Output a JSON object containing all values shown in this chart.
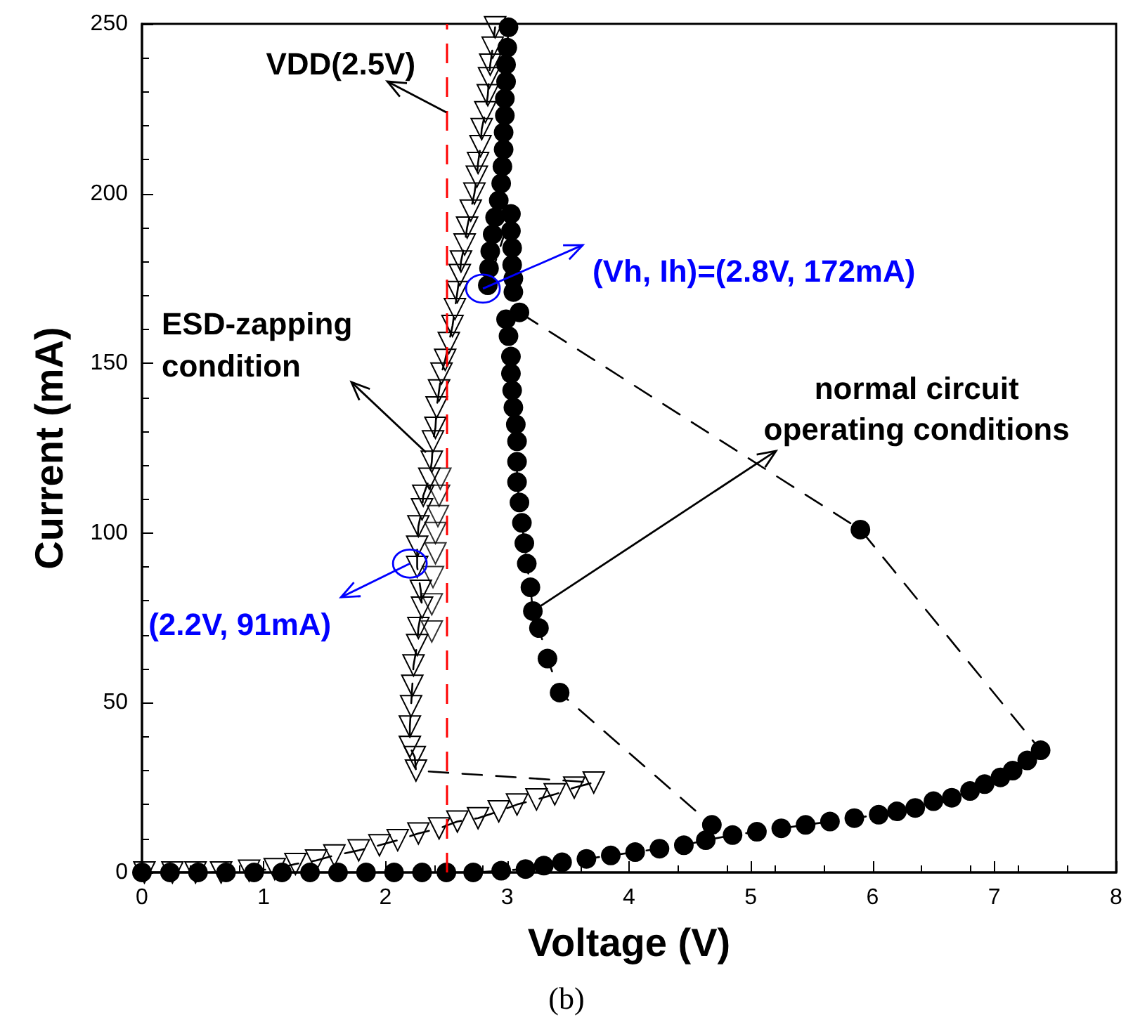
{
  "chart_data": {
    "type": "line",
    "xlabel": "Voltage (V)",
    "ylabel": "Current (mA)",
    "xlim": [
      0,
      8
    ],
    "xticks": [
      0,
      1,
      2,
      3,
      4,
      5,
      6,
      7,
      8
    ],
    "ylim": [
      0,
      250
    ],
    "yticks": [
      0,
      50,
      100,
      150,
      200,
      250
    ],
    "grid": false,
    "line_style": "dashed",
    "series": [
      {
        "color": "#000000",
        "marker": "circle",
        "x": [
          0,
          0.23,
          0.46,
          0.69,
          0.92,
          1.15,
          1.38,
          1.61,
          1.84,
          2.07,
          2.3,
          2.5,
          2.72,
          2.95,
          3.15,
          3.3,
          3.45,
          3.65,
          3.85,
          4.05,
          4.25,
          4.45,
          4.63,
          4.85,
          5.05,
          5.25,
          5.45,
          5.65,
          5.85,
          6.05,
          6.2,
          6.35,
          6.5,
          6.65,
          6.8,
          6.92,
          7.05,
          7.15,
          7.27,
          7.38,
          5.9,
          3.1,
          3.05,
          3.05,
          3.04,
          3.04,
          3.03,
          3.03,
          2.84,
          2.85,
          2.86,
          2.88,
          2.9,
          2.93,
          2.95,
          2.96,
          2.97,
          2.97,
          2.98,
          2.98,
          2.99,
          2.99,
          3.0,
          3.01
        ],
        "values": [
          0,
          0,
          0,
          0,
          0,
          0,
          0,
          0,
          0,
          0,
          0,
          0,
          0,
          0.5,
          1,
          2,
          3,
          4,
          5,
          6,
          7,
          8,
          9.5,
          11,
          12,
          13,
          14,
          15,
          16,
          17,
          18,
          19,
          21,
          22,
          24,
          26,
          28,
          30,
          33,
          36,
          101,
          165,
          171,
          175,
          179,
          184,
          189,
          194,
          173,
          178,
          183,
          188,
          193,
          198,
          203,
          208,
          213,
          218,
          223,
          228,
          233,
          238,
          243,
          249
        ]
      },
      {
        "color": "#000000",
        "marker": "circle",
        "x": [
          2.99,
          3.01,
          3.03,
          3.03,
          3.04,
          3.05,
          3.07,
          3.08,
          3.08,
          3.08,
          3.1,
          3.12,
          3.14,
          3.16,
          3.19,
          3.21,
          3.26,
          3.33,
          3.43,
          4.68
        ],
        "values": [
          163,
          158,
          152,
          147,
          142,
          137,
          132,
          127,
          121,
          115,
          109,
          103,
          97,
          91,
          84,
          77,
          72,
          63,
          53,
          14
        ]
      },
      {
        "color": "#000000",
        "marker": "triangle",
        "x": [
          0.02,
          0.25,
          0.44,
          0.65,
          0.88,
          1.09,
          1.26,
          1.43,
          1.58,
          1.78,
          1.95,
          2.1,
          2.27,
          2.44,
          2.59,
          2.76,
          2.93,
          3.08,
          3.24,
          3.39,
          3.55,
          3.71,
          2.25,
          2.24,
          2.2,
          2.2,
          2.21,
          2.22,
          2.23,
          2.26,
          2.27,
          2.3,
          2.29,
          2.26,
          2.26,
          2.27,
          2.3,
          2.31,
          2.36,
          2.38,
          2.39,
          2.41,
          2.42,
          2.44,
          2.46,
          2.49,
          2.52,
          2.55,
          2.57,
          2.59,
          2.61,
          2.62,
          2.65,
          2.67,
          2.7,
          2.73,
          2.75,
          2.76,
          2.78,
          2.79,
          2.82,
          2.84,
          2.85,
          2.86,
          2.88,
          2.9
        ],
        "values": [
          0,
          0,
          0,
          0,
          0.5,
          1,
          2.5,
          3.5,
          5,
          6.5,
          8,
          9.5,
          11.5,
          13,
          15,
          16,
          18,
          20,
          21.5,
          23,
          25,
          26.5,
          30,
          34,
          37,
          43,
          49,
          55,
          61,
          67,
          72,
          78,
          83,
          90,
          96,
          102,
          107,
          111,
          116,
          121,
          127,
          131,
          137,
          142,
          147,
          151,
          156,
          161,
          166,
          171,
          176,
          180,
          185,
          190,
          195,
          200,
          205,
          209,
          214,
          219,
          224,
          229,
          234,
          238,
          243,
          249
        ]
      },
      {
        "type": "scatter",
        "color": "#000000",
        "marker": "triangle",
        "x": [
          2.38,
          2.38,
          2.39,
          2.41,
          2.41,
          2.43,
          2.44,
          2.45
        ],
        "values": [
          71,
          79,
          87,
          94,
          100,
          105,
          111,
          116
        ]
      }
    ],
    "ref_lines": [
      {
        "axis": "x",
        "value": 2.5,
        "label": "VDD(2.5V)",
        "color": "#ff0000",
        "line_style": "dashed"
      }
    ],
    "annotations": [
      {
        "text": "(Vh, Ih)=(2.8V, 172mA)",
        "x": 2.8,
        "y": 172
      },
      {
        "text": "(2.2V, 91mA)",
        "x": 2.2,
        "y": 91
      },
      "ESD-zapping\ncondition",
      {
        "text": "normal circuit\noperating conditions",
        "x": 3.21,
        "y": 77
      },
      "(b)"
    ]
  }
}
